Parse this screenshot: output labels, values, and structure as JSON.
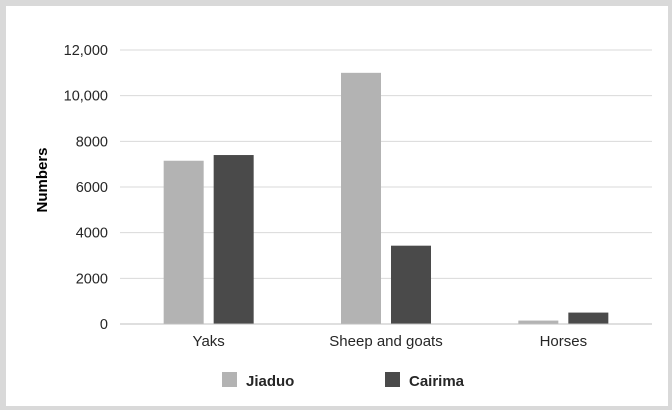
{
  "chart_data": {
    "type": "bar",
    "title": "",
    "xlabel": "",
    "ylabel": "Numbers",
    "categories": [
      "Yaks",
      "Sheep and goats",
      "Horses"
    ],
    "series": [
      {
        "name": "Jiaduo",
        "values": [
          7150,
          11000,
          150
        ],
        "color": "#b3b3b3"
      },
      {
        "name": "Cairima",
        "values": [
          7400,
          3430,
          500
        ],
        "color": "#4a4a4a"
      }
    ],
    "ylim": [
      0,
      12000
    ],
    "yticks": [
      {
        "value": 0,
        "label": "0"
      },
      {
        "value": 2000,
        "label": "2000"
      },
      {
        "value": 4000,
        "label": "4000"
      },
      {
        "value": 6000,
        "label": "6000"
      },
      {
        "value": 8000,
        "label": "8000"
      },
      {
        "value": 10000,
        "label": "10,000"
      },
      {
        "value": 12000,
        "label": "12,000"
      }
    ],
    "grid": true,
    "legend_position": "bottom",
    "grid_color": "#d9d9d9"
  }
}
